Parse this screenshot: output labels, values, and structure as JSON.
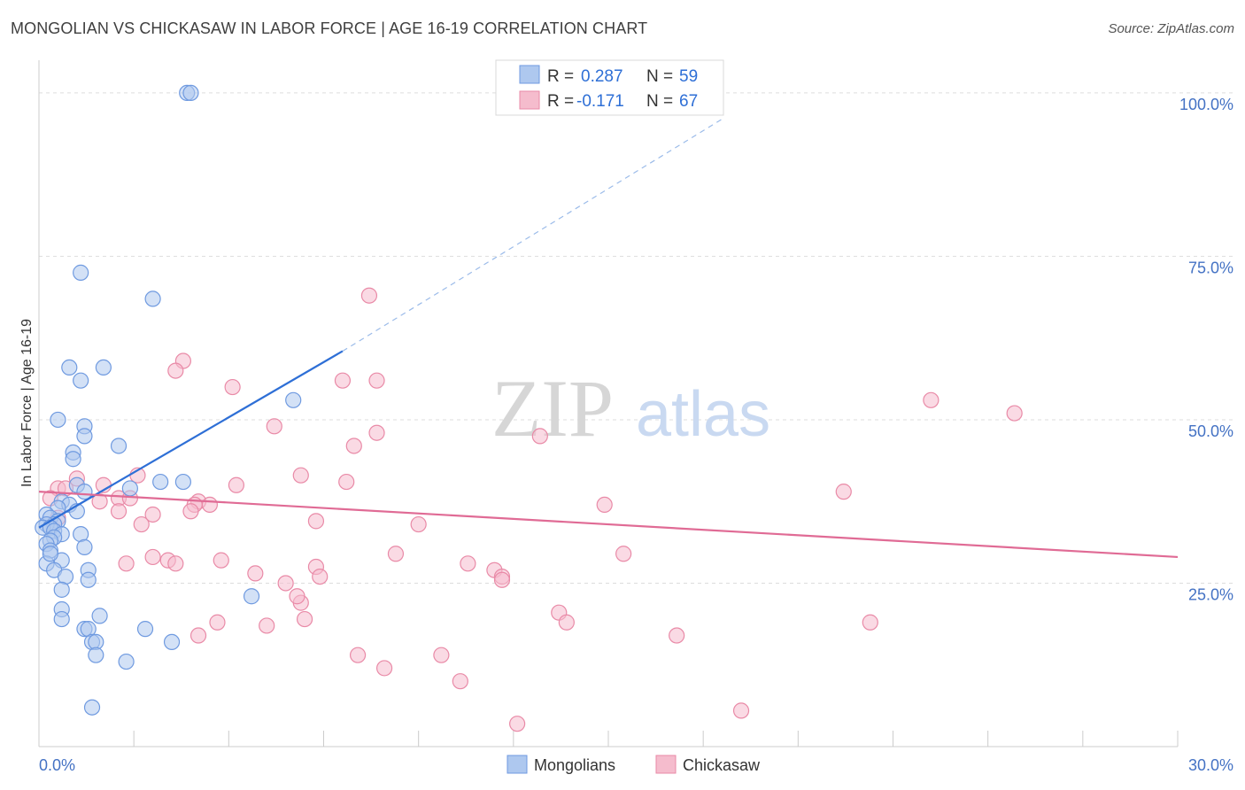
{
  "title": "MONGOLIAN VS CHICKASAW IN LABOR FORCE | AGE 16-19 CORRELATION CHART",
  "source": "Source: ZipAtlas.com",
  "watermark": {
    "zip": "ZIP",
    "atlas": "atlas"
  },
  "colors": {
    "mongolians_fill": "#aec8ef",
    "mongolians_stroke": "#6f9ae0",
    "mongolians_line": "#2e6fd6",
    "chickasaw_fill": "#f5bccd",
    "chickasaw_stroke": "#e98aa7",
    "chickasaw_line": "#e06b95",
    "grid": "#dddddd",
    "tick_text": "#4472c4"
  },
  "legend_top": {
    "rows": [
      {
        "series": "Mongolians",
        "r_label": "R =",
        "r_value": "0.287",
        "n_label": "N =",
        "n_value": "59"
      },
      {
        "series": "Chickasaw",
        "r_label": "R =",
        "r_value": "-0.171",
        "n_label": "N =",
        "n_value": "67"
      }
    ]
  },
  "legend_bottom": {
    "items": [
      "Mongolians",
      "Chickasaw"
    ]
  },
  "chart_data": {
    "type": "scatter",
    "title": "MONGOLIAN VS CHICKASAW IN LABOR FORCE | AGE 16-19 CORRELATION CHART",
    "xlabel": "",
    "ylabel": "In Labor Force | Age 16-19",
    "xlim": [
      0,
      30
    ],
    "ylim": [
      0,
      105
    ],
    "x_tick_labels": [
      "0.0%",
      "30.0%"
    ],
    "y_tick_labels": [
      {
        "value": 100,
        "label": "100.0%"
      },
      {
        "value": 75,
        "label": "75.0%"
      },
      {
        "value": 50,
        "label": "50.0%"
      },
      {
        "value": 25,
        "label": "25.0%"
      }
    ],
    "grid": "horizontal dashed",
    "legend": "top-center",
    "series": [
      {
        "name": "Mongolians",
        "points": [
          [
            3.9,
            100
          ],
          [
            4.0,
            100
          ],
          [
            1.1,
            72.5
          ],
          [
            3.0,
            68.5
          ],
          [
            0.8,
            58
          ],
          [
            1.7,
            58
          ],
          [
            1.1,
            56
          ],
          [
            6.7,
            53
          ],
          [
            0.5,
            50
          ],
          [
            1.2,
            49
          ],
          [
            1.2,
            47.5
          ],
          [
            2.1,
            46
          ],
          [
            0.9,
            45
          ],
          [
            0.9,
            44
          ],
          [
            3.2,
            40.5
          ],
          [
            3.8,
            40.5
          ],
          [
            1.0,
            40
          ],
          [
            2.4,
            39.5
          ],
          [
            1.2,
            39
          ],
          [
            0.6,
            37.5
          ],
          [
            0.8,
            37
          ],
          [
            0.5,
            36.5
          ],
          [
            1.0,
            36
          ],
          [
            0.2,
            35.5
          ],
          [
            0.3,
            35
          ],
          [
            0.5,
            34.5
          ],
          [
            0.4,
            34
          ],
          [
            0.2,
            34
          ],
          [
            0.1,
            33.5
          ],
          [
            0.3,
            33.5
          ],
          [
            0.4,
            33
          ],
          [
            0.6,
            32.5
          ],
          [
            1.1,
            32.5
          ],
          [
            0.4,
            32
          ],
          [
            0.3,
            31.5
          ],
          [
            0.2,
            31
          ],
          [
            0.3,
            30
          ],
          [
            1.2,
            30.5
          ],
          [
            0.6,
            28.5
          ],
          [
            0.2,
            28
          ],
          [
            1.3,
            27
          ],
          [
            0.4,
            27
          ],
          [
            0.7,
            26
          ],
          [
            1.3,
            25.5
          ],
          [
            0.6,
            24
          ],
          [
            5.6,
            23
          ],
          [
            0.6,
            21
          ],
          [
            1.6,
            20
          ],
          [
            1.2,
            18
          ],
          [
            1.3,
            18
          ],
          [
            2.8,
            18
          ],
          [
            1.4,
            16
          ],
          [
            1.5,
            16
          ],
          [
            3.5,
            16
          ],
          [
            1.5,
            14
          ],
          [
            2.3,
            13
          ],
          [
            0.6,
            19.5
          ],
          [
            1.4,
            6
          ],
          [
            0.3,
            29.5
          ]
        ]
      },
      {
        "name": "Chickasaw",
        "points": [
          [
            8.7,
            69
          ],
          [
            3.8,
            59
          ],
          [
            3.6,
            57.5
          ],
          [
            5.1,
            55
          ],
          [
            8.0,
            56
          ],
          [
            8.9,
            56
          ],
          [
            23.5,
            53
          ],
          [
            25.7,
            51
          ],
          [
            6.2,
            49
          ],
          [
            8.9,
            48
          ],
          [
            13.2,
            47.5
          ],
          [
            8.3,
            46
          ],
          [
            6.9,
            41.5
          ],
          [
            2.6,
            41.5
          ],
          [
            8.1,
            40.5
          ],
          [
            5.2,
            40
          ],
          [
            1.0,
            41
          ],
          [
            1.7,
            40
          ],
          [
            0.5,
            39.5
          ],
          [
            0.7,
            39.5
          ],
          [
            21.2,
            39
          ],
          [
            2.1,
            38
          ],
          [
            2.4,
            38
          ],
          [
            4.2,
            37.5
          ],
          [
            4.1,
            37
          ],
          [
            0.3,
            38
          ],
          [
            1.6,
            37.5
          ],
          [
            14.9,
            37
          ],
          [
            4.5,
            37
          ],
          [
            4.0,
            36
          ],
          [
            2.1,
            36
          ],
          [
            3.0,
            35.5
          ],
          [
            0.5,
            35
          ],
          [
            7.3,
            34.5
          ],
          [
            10.0,
            34
          ],
          [
            2.7,
            34
          ],
          [
            15.4,
            29.5
          ],
          [
            9.4,
            29.5
          ],
          [
            3.0,
            29
          ],
          [
            3.4,
            28.5
          ],
          [
            4.8,
            28.5
          ],
          [
            3.6,
            28
          ],
          [
            7.3,
            27.5
          ],
          [
            11.3,
            28
          ],
          [
            2.3,
            28
          ],
          [
            12.0,
            27
          ],
          [
            12.2,
            26
          ],
          [
            5.7,
            26.5
          ],
          [
            7.4,
            26
          ],
          [
            6.5,
            25
          ],
          [
            6.9,
            22
          ],
          [
            12.2,
            25.5
          ],
          [
            13.7,
            20.5
          ],
          [
            7.0,
            19.5
          ],
          [
            4.7,
            19
          ],
          [
            6.0,
            18.5
          ],
          [
            13.9,
            19
          ],
          [
            16.8,
            17
          ],
          [
            21.9,
            19
          ],
          [
            8.4,
            14
          ],
          [
            10.6,
            14
          ],
          [
            9.1,
            12
          ],
          [
            11.1,
            10
          ],
          [
            18.5,
            5.5
          ],
          [
            12.6,
            3.5
          ],
          [
            4.2,
            17
          ],
          [
            6.8,
            23
          ]
        ]
      }
    ],
    "trend_lines": [
      {
        "series": "Mongolians",
        "x0": 0,
        "y0": 33.5,
        "x1": 8.0,
        "y1": 60.5,
        "extended_to": [
          18,
          96
        ]
      },
      {
        "series": "Chickasaw",
        "x0": 0,
        "y0": 39,
        "x1": 30,
        "y1": 29
      }
    ]
  }
}
